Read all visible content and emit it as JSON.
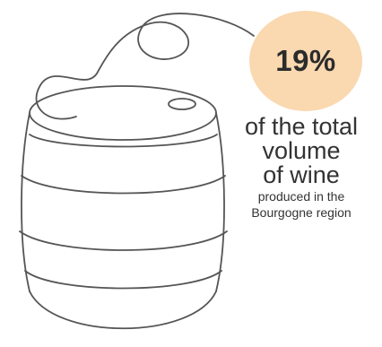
{
  "stat": {
    "value": "19%",
    "circle_color": "#fad8b0"
  },
  "caption": {
    "line1": "of the total",
    "line2": "volume",
    "line3": "of wine",
    "line4": "produced in the",
    "line5": "Bourgogne region"
  },
  "illustration": {
    "icon": "barrel-icon",
    "stroke_color": "#555555"
  }
}
